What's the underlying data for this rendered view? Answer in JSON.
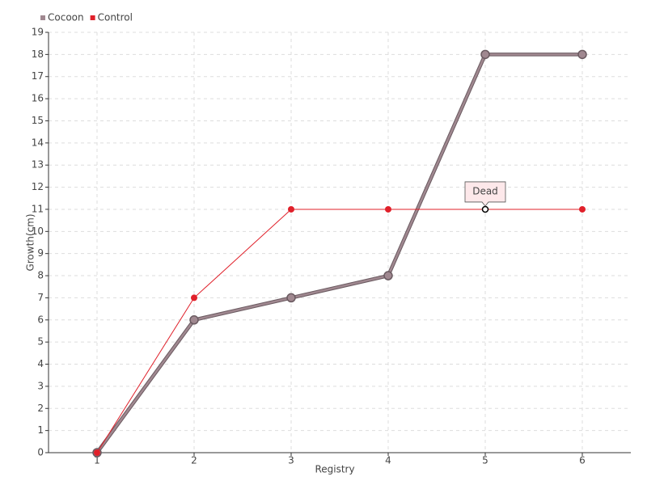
{
  "chart_data": {
    "type": "line",
    "x": [
      1,
      2,
      3,
      4,
      5,
      6
    ],
    "series": [
      {
        "name": "Cocoon",
        "color": "#a08890",
        "values": [
          0,
          6,
          7,
          8,
          18,
          18
        ]
      },
      {
        "name": "Control",
        "color": "#e0202a",
        "values": [
          0,
          7,
          11,
          11,
          11,
          11
        ]
      }
    ],
    "xlabel": "Registry",
    "ylabel": "Growth(cm)",
    "xlim": [
      0.5,
      6.5
    ],
    "xticks": [
      1,
      2,
      3,
      4,
      5,
      6
    ],
    "ylim": [
      0,
      19
    ],
    "yticks": [
      0,
      1,
      2,
      3,
      4,
      5,
      6,
      7,
      8,
      9,
      10,
      11,
      12,
      13,
      14,
      15,
      16,
      17,
      18,
      19
    ],
    "grid": true,
    "legend": "top-left",
    "annotations": [
      {
        "text": "Dead",
        "x": 5,
        "y": 11
      }
    ]
  }
}
